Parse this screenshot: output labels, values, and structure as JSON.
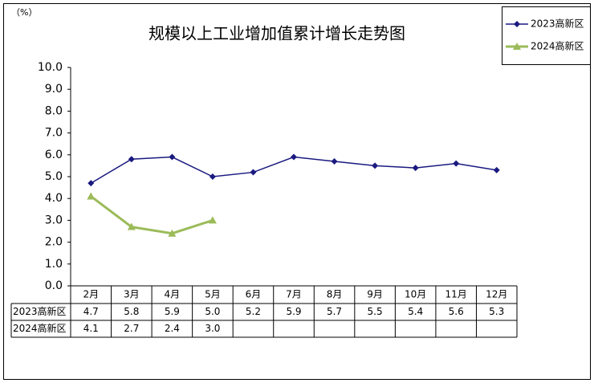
{
  "chart_data": {
    "type": "line",
    "title": "规模以上工业增加值累计增长走势图",
    "y_unit": "（%）",
    "categories": [
      "2月",
      "3月",
      "4月",
      "5月",
      "6月",
      "7月",
      "8月",
      "9月",
      "10月",
      "11月",
      "12月"
    ],
    "series": [
      {
        "name": "2023高新区",
        "color": "#1a1a80",
        "marker": "diamond",
        "values": [
          4.7,
          5.8,
          5.9,
          5.0,
          5.2,
          5.9,
          5.7,
          5.5,
          5.4,
          5.6,
          5.3
        ],
        "value_labels": [
          "4.7",
          "5.8",
          "5.9",
          "5.0",
          "5.2",
          "5.9",
          "5.7",
          "5.5",
          "5.4",
          "5.6",
          "5.3"
        ]
      },
      {
        "name": "2024高新区",
        "color": "#9bbb59",
        "marker": "triangle",
        "values": [
          4.1,
          2.7,
          2.4,
          3.0,
          null,
          null,
          null,
          null,
          null,
          null,
          null
        ],
        "value_labels": [
          "4.1",
          "2.7",
          "2.4",
          "3.0",
          null,
          null,
          null,
          null,
          null,
          null,
          null
        ]
      }
    ],
    "ylim": [
      0,
      10
    ],
    "yticks": [
      {
        "value": 0,
        "label": "0.0"
      },
      {
        "value": 1,
        "label": "1.0"
      },
      {
        "value": 2,
        "label": "2.0"
      },
      {
        "value": 3,
        "label": "3.0"
      },
      {
        "value": 4,
        "label": "4.0"
      },
      {
        "value": 5,
        "label": "5.0"
      },
      {
        "value": 6,
        "label": "6.0"
      },
      {
        "value": 7,
        "label": "7.0"
      },
      {
        "value": 8,
        "label": "8.0"
      },
      {
        "value": 9,
        "label": "9.0"
      },
      {
        "value": 10,
        "label": "10.0"
      }
    ],
    "legend": "top-right",
    "grid": false
  }
}
